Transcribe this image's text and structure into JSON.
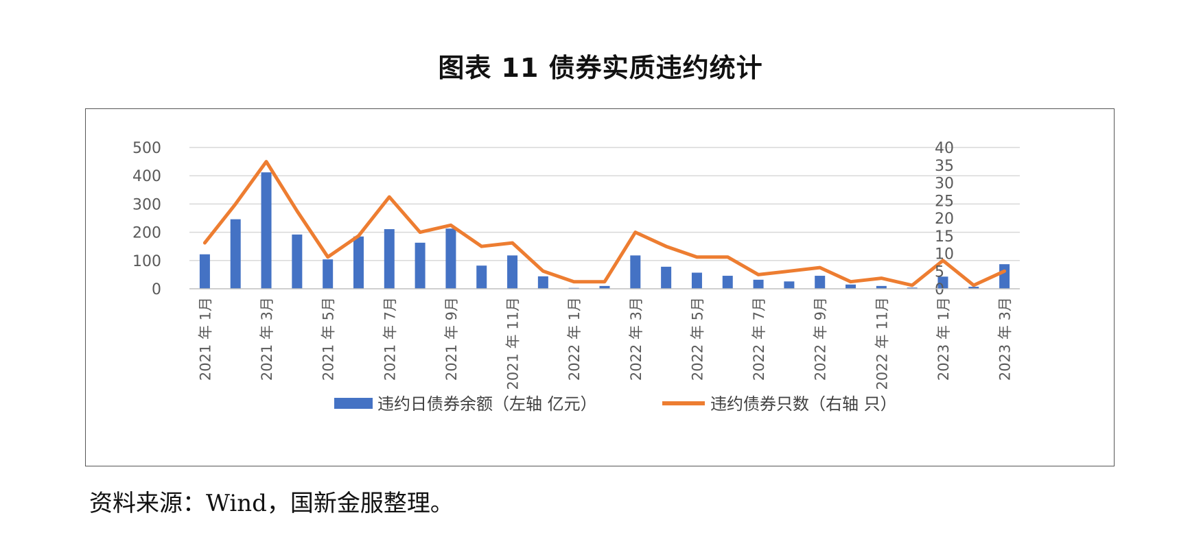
{
  "title": "图表 11  债券实质违约统计",
  "source": "资料来源：Wind，国新金服整理。",
  "colors": {
    "bar": "#4472C4",
    "line": "#ED7D31",
    "grid": "#D9D9D9",
    "axis": "#BFBFBF"
  },
  "chart_data": {
    "type": "bar+line",
    "categories": [
      "2021年1月",
      "2021年2月",
      "2021年3月",
      "2021年4月",
      "2021年5月",
      "2021年6月",
      "2021年7月",
      "2021年8月",
      "2021年9月",
      "2021年10月",
      "2021年11月",
      "2021年12月",
      "2022年1月",
      "2022年2月",
      "2022年3月",
      "2022年4月",
      "2022年5月",
      "2022年6月",
      "2022年7月",
      "2022年8月",
      "2022年9月",
      "2022年10月",
      "2022年11月",
      "2022年12月",
      "2023年1月",
      "2023年2月",
      "2023年3月"
    ],
    "x_tick_labels": [
      "2021 年 1月",
      "",
      "2021 年 3月",
      "",
      "2021 年 5月",
      "",
      "2021 年 7月",
      "",
      "2021 年 9月",
      "",
      "2021 年 11月",
      "",
      "2022 年 1月",
      "",
      "2022 年 3月",
      "",
      "2022 年 5月",
      "",
      "2022 年 7月",
      "",
      "2022 年 9月",
      "",
      "2022 年 11月",
      "",
      "2023 年 1月",
      "",
      "2023 年 3月"
    ],
    "series": [
      {
        "name": "违约日债券余额（左轴  亿元）",
        "type": "bar",
        "axis": "left",
        "values": [
          122,
          246,
          412,
          192,
          104,
          185,
          211,
          163,
          213,
          82,
          118,
          44,
          3,
          10,
          118,
          78,
          57,
          46,
          32,
          26,
          46,
          15,
          10,
          4,
          43,
          7,
          87
        ]
      },
      {
        "name": "违约债券只数（右轴  只）",
        "type": "line",
        "axis": "right",
        "values": [
          13,
          24,
          36,
          22,
          9,
          15,
          26,
          16,
          18,
          12,
          13,
          5,
          2,
          2,
          16,
          12,
          9,
          9,
          4,
          5,
          6,
          2,
          3,
          1,
          8,
          1,
          5
        ]
      }
    ],
    "y_left": {
      "ylim": [
        0,
        500
      ],
      "ticks": [
        "0",
        "100",
        "200",
        "300",
        "400",
        "500"
      ]
    },
    "y_right": {
      "ylim": [
        0,
        40
      ],
      "ticks": [
        "0",
        "5",
        "10",
        "15",
        "20",
        "25",
        "30",
        "35",
        "40"
      ]
    },
    "grid": true,
    "legend_position": "bottom"
  }
}
